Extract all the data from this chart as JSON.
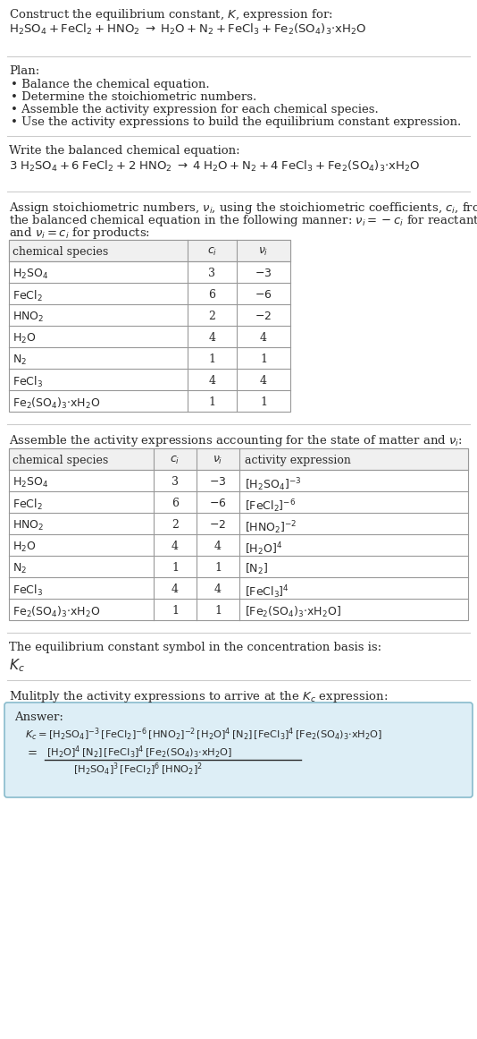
{
  "bg_color": "#ffffff",
  "text_color": "#2a2a2a",
  "table_border_color": "#999999",
  "answer_box_color": "#ddeef6",
  "answer_box_border": "#88bbcc",
  "title_line1": "Construct the equilibrium constant, $K$, expression for:",
  "title_line2": "$\\mathrm{H_2SO_4 + FeCl_2 + HNO_2 \\;\\rightarrow\\; H_2O + N_2 + FeCl_3 + Fe_2(SO_4)_3{\\cdot}xH_2O}$",
  "plan_header": "Plan:",
  "plan_items": [
    "• Balance the chemical equation.",
    "• Determine the stoichiometric numbers.",
    "• Assemble the activity expression for each chemical species.",
    "• Use the activity expressions to build the equilibrium constant expression."
  ],
  "balanced_header": "Write the balanced chemical equation:",
  "balanced_eq": "$\\mathrm{3\\;H_2SO_4 + 6\\;FeCl_2 + 2\\;HNO_2 \\;\\rightarrow\\; 4\\;H_2O + N_2 + 4\\;FeCl_3 + Fe_2(SO_4)_3{\\cdot}xH_2O}$",
  "stoich_header_1": "Assign stoichiometric numbers, $\\nu_i$, using the stoichiometric coefficients, $c_i$, from",
  "stoich_header_2": "the balanced chemical equation in the following manner: $\\nu_i = -c_i$ for reactants",
  "stoich_header_3": "and $\\nu_i = c_i$ for products:",
  "table1_cols": [
    "chemical species",
    "$c_i$",
    "$\\nu_i$"
  ],
  "table1_rows": [
    [
      "$\\mathrm{H_2SO_4}$",
      "3",
      "$-3$"
    ],
    [
      "$\\mathrm{FeCl_2}$",
      "6",
      "$-6$"
    ],
    [
      "$\\mathrm{HNO_2}$",
      "2",
      "$-2$"
    ],
    [
      "$\\mathrm{H_2O}$",
      "4",
      "4"
    ],
    [
      "$\\mathrm{N_2}$",
      "1",
      "1"
    ],
    [
      "$\\mathrm{FeCl_3}$",
      "4",
      "4"
    ],
    [
      "$\\mathrm{Fe_2(SO_4)_3{\\cdot}xH_2O}$",
      "1",
      "1"
    ]
  ],
  "activity_header": "Assemble the activity expressions accounting for the state of matter and $\\nu_i$:",
  "table2_cols": [
    "chemical species",
    "$c_i$",
    "$\\nu_i$",
    "activity expression"
  ],
  "table2_rows": [
    [
      "$\\mathrm{H_2SO_4}$",
      "3",
      "$-3$",
      "$[\\mathrm{H_2SO_4}]^{-3}$"
    ],
    [
      "$\\mathrm{FeCl_2}$",
      "6",
      "$-6$",
      "$[\\mathrm{FeCl_2}]^{-6}$"
    ],
    [
      "$\\mathrm{HNO_2}$",
      "2",
      "$-2$",
      "$[\\mathrm{HNO_2}]^{-2}$"
    ],
    [
      "$\\mathrm{H_2O}$",
      "4",
      "4",
      "$[\\mathrm{H_2O}]^4$"
    ],
    [
      "$\\mathrm{N_2}$",
      "1",
      "1",
      "$[\\mathrm{N_2}]$"
    ],
    [
      "$\\mathrm{FeCl_3}$",
      "4",
      "4",
      "$[\\mathrm{FeCl_3}]^4$"
    ],
    [
      "$\\mathrm{Fe_2(SO_4)_3{\\cdot}xH_2O}$",
      "1",
      "1",
      "$[\\mathrm{Fe_2(SO_4)_3{\\cdot}xH_2O}]$"
    ]
  ],
  "kc_header": "The equilibrium constant symbol in the concentration basis is:",
  "kc_symbol": "$K_c$",
  "multiply_header": "Mulitply the activity expressions to arrive at the $K_c$ expression:",
  "answer_label": "Answer:",
  "answer_line1": "$K_c = [\\mathrm{H_2SO_4}]^{-3}\\,[\\mathrm{FeCl_2}]^{-6}\\,[\\mathrm{HNO_2}]^{-2}\\,[\\mathrm{H_2O}]^4\\,[\\mathrm{N_2}]\\,[\\mathrm{FeCl_3}]^4\\,[\\mathrm{Fe_2(SO_4)_3{\\cdot}xH_2O}]$",
  "answer_eq_prefix": "$=$",
  "answer_line2_num": "$[\\mathrm{H_2O}]^4\\,[\\mathrm{N_2}]\\,[\\mathrm{FeCl_3}]^4\\,[\\mathrm{Fe_2(SO_4)_3{\\cdot}xH_2O}]$",
  "answer_line2_den": "$[\\mathrm{H_2SO_4}]^3\\,[\\mathrm{FeCl_2}]^6\\,[\\mathrm{HNO_2}]^2$"
}
